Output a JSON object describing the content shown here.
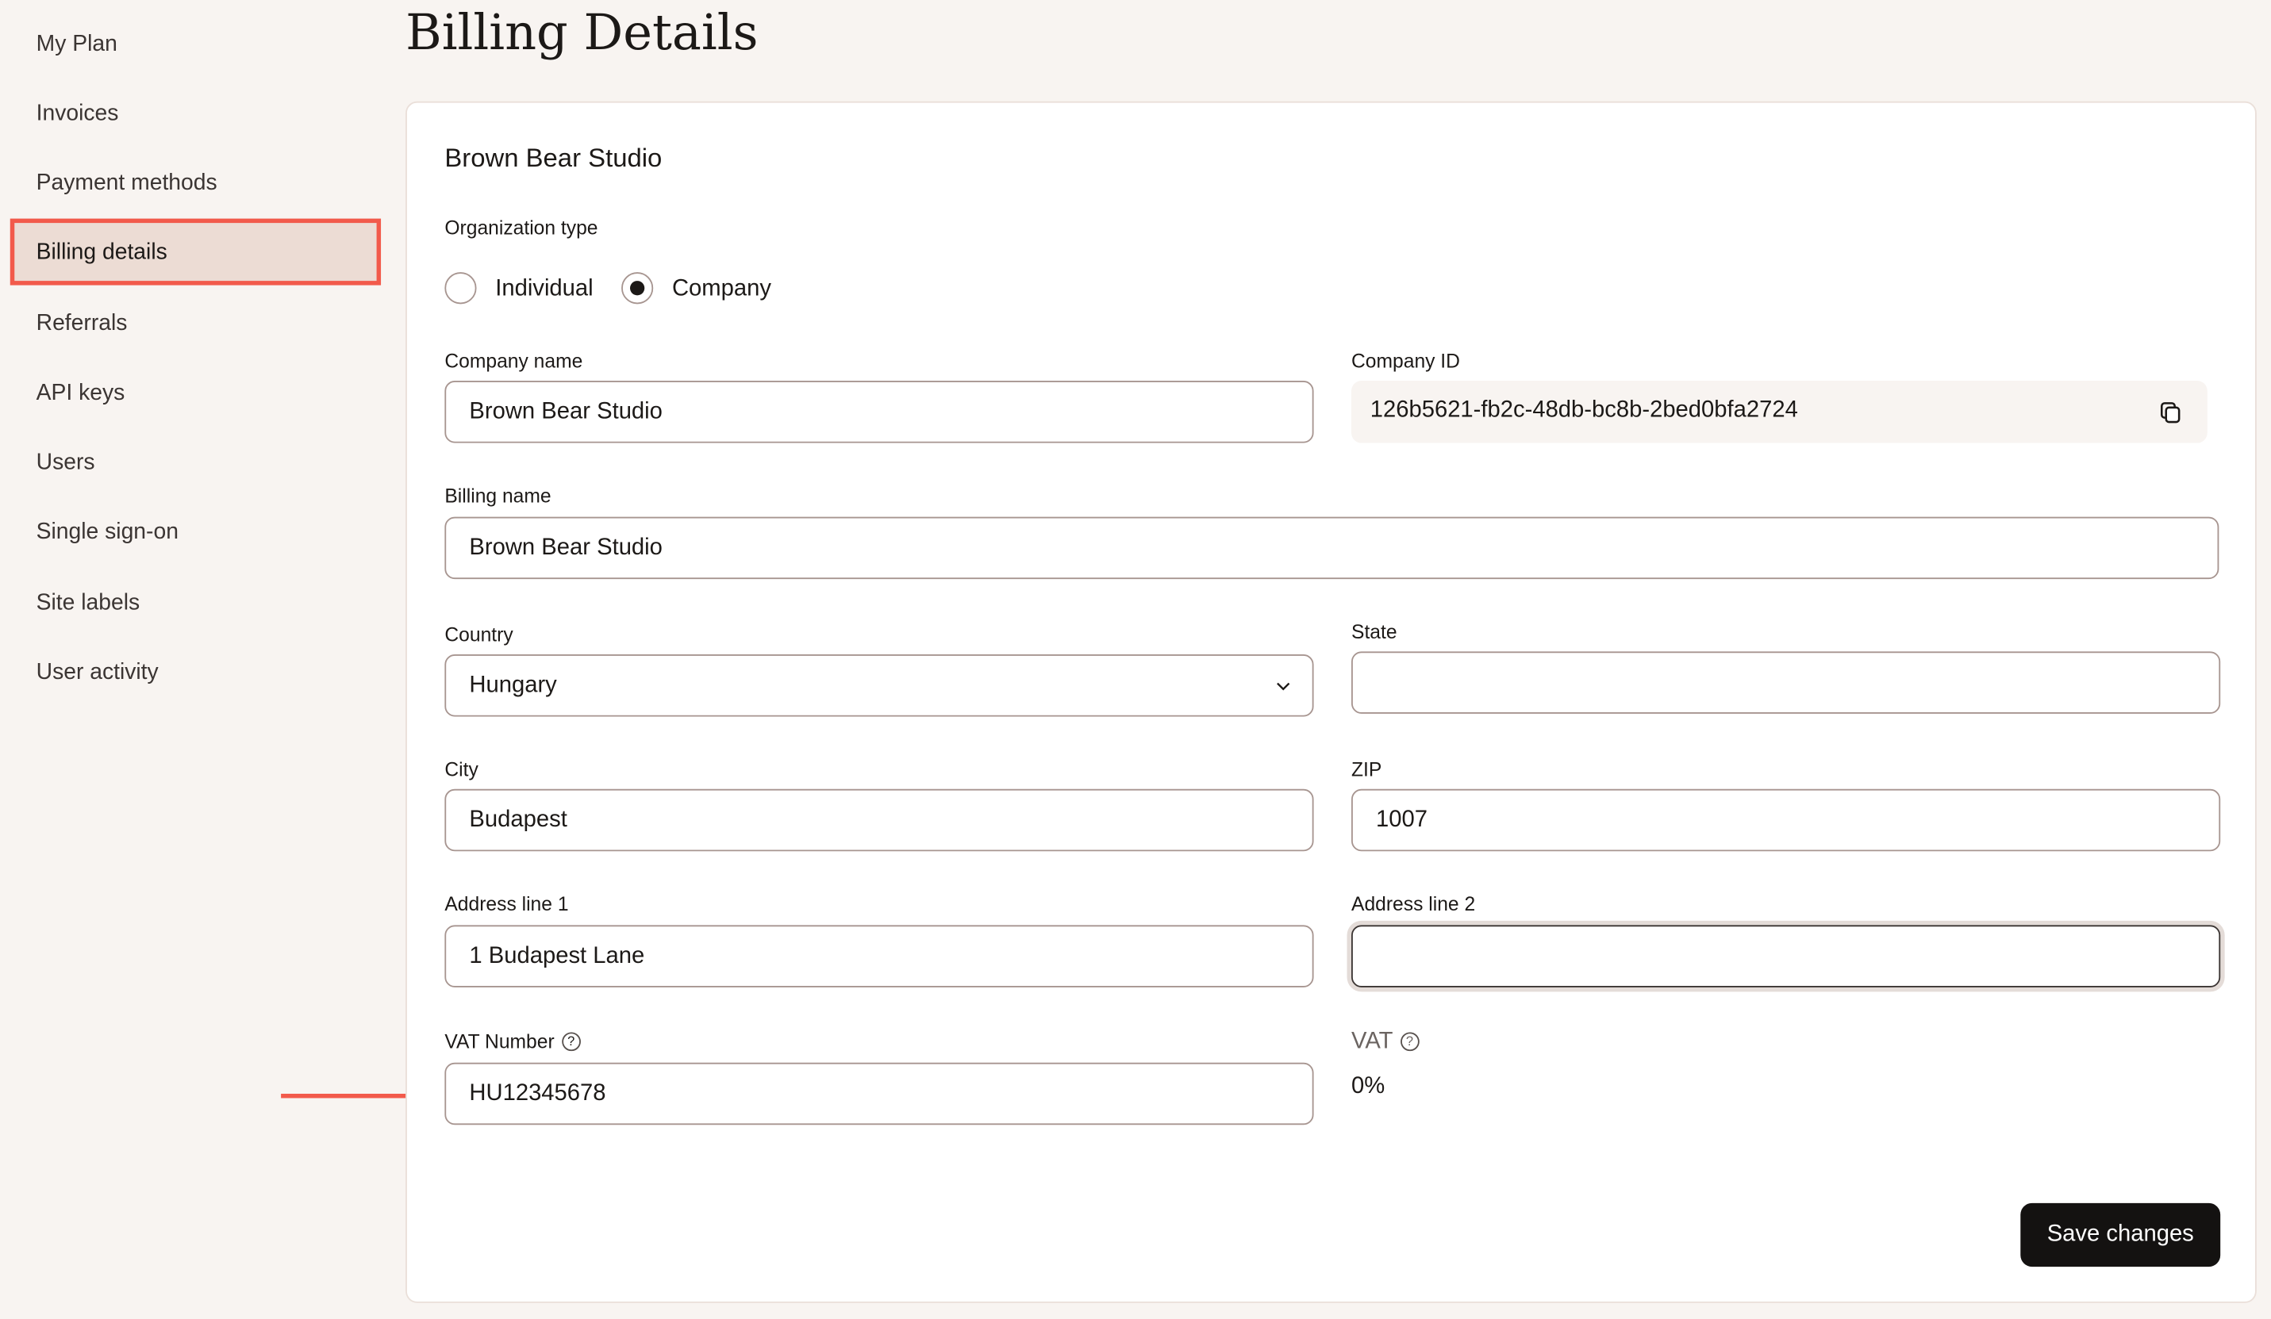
{
  "sidebar": {
    "items": [
      {
        "label": "My Plan"
      },
      {
        "label": "Invoices"
      },
      {
        "label": "Payment methods"
      },
      {
        "label": "Billing details",
        "active": true
      },
      {
        "label": "Referrals"
      },
      {
        "label": "API keys"
      },
      {
        "label": "Users"
      },
      {
        "label": "Single sign-on"
      },
      {
        "label": "Site labels"
      },
      {
        "label": "User activity"
      }
    ]
  },
  "page": {
    "title": "Billing Details"
  },
  "form": {
    "org_name": "Brown Bear Studio",
    "org_type_label": "Organization type",
    "org_type_options": [
      "Individual",
      "Company"
    ],
    "org_type_selected": "Company",
    "company_name_label": "Company name",
    "company_name": "Brown Bear Studio",
    "company_id_label": "Company ID",
    "company_id": "126b5621-fb2c-48db-bc8b-2bed0bfa2724",
    "billing_name_label": "Billing name",
    "billing_name": "Brown Bear Studio",
    "country_label": "Country",
    "country": "Hungary",
    "state_label": "State",
    "state": "",
    "city_label": "City",
    "city": "Budapest",
    "zip_label": "ZIP",
    "zip": "1007",
    "address1_label": "Address line 1",
    "address1": "1 Budapest Lane",
    "address2_label": "Address line 2",
    "address2": "",
    "vat_number_label": "VAT Number",
    "vat_number": "HU12345678",
    "vat_label": "VAT",
    "vat_value": "0%",
    "save_label": "Save changes"
  },
  "colors": {
    "highlight": "#f25a4b",
    "button": "#141211"
  }
}
